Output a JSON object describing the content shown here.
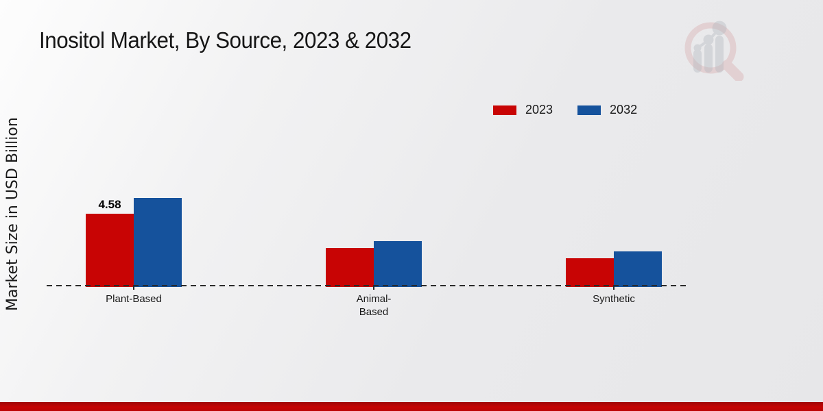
{
  "page": {
    "title": "Inositol Market, By Source, 2023 & 2032",
    "y_axis_label": "Market Size in USD Billion"
  },
  "colors": {
    "series_2023": "#c80404",
    "series_2032": "#15529c",
    "footer_band": "#c40404",
    "baseline": "#2a2a2a",
    "background_light": "#fdfdfd",
    "background_dark": "#e7e7e9"
  },
  "icons": {
    "logo": "magnifier-bar-chart-logo"
  },
  "legend": {
    "items": [
      {
        "label": "2023",
        "color": "#c80404"
      },
      {
        "label": "2032",
        "color": "#15529c"
      }
    ]
  },
  "chart_data": {
    "type": "bar",
    "title": "Inositol Market, By Source, 2023 & 2032",
    "xlabel": "",
    "ylabel": "Market Size in USD Billion",
    "categories": [
      "Plant-Based",
      "Animal-Based",
      "Synthetic"
    ],
    "tick_labels": [
      "Plant-Based",
      "Animal-\nBased",
      "Synthetic"
    ],
    "series": [
      {
        "name": "2023",
        "color": "#c80404",
        "values": [
          4.58,
          2.42,
          1.77
        ]
      },
      {
        "name": "2032",
        "color": "#15529c",
        "values": [
          5.57,
          2.85,
          2.2
        ]
      }
    ],
    "data_labels": [
      {
        "category": "Plant-Based",
        "series": "2023",
        "text": "4.58"
      }
    ],
    "unit": "USD Billion",
    "ylim": [
      0,
      6
    ],
    "grid": false,
    "legend_position": "upper-right",
    "baseline_style": "dashed"
  }
}
